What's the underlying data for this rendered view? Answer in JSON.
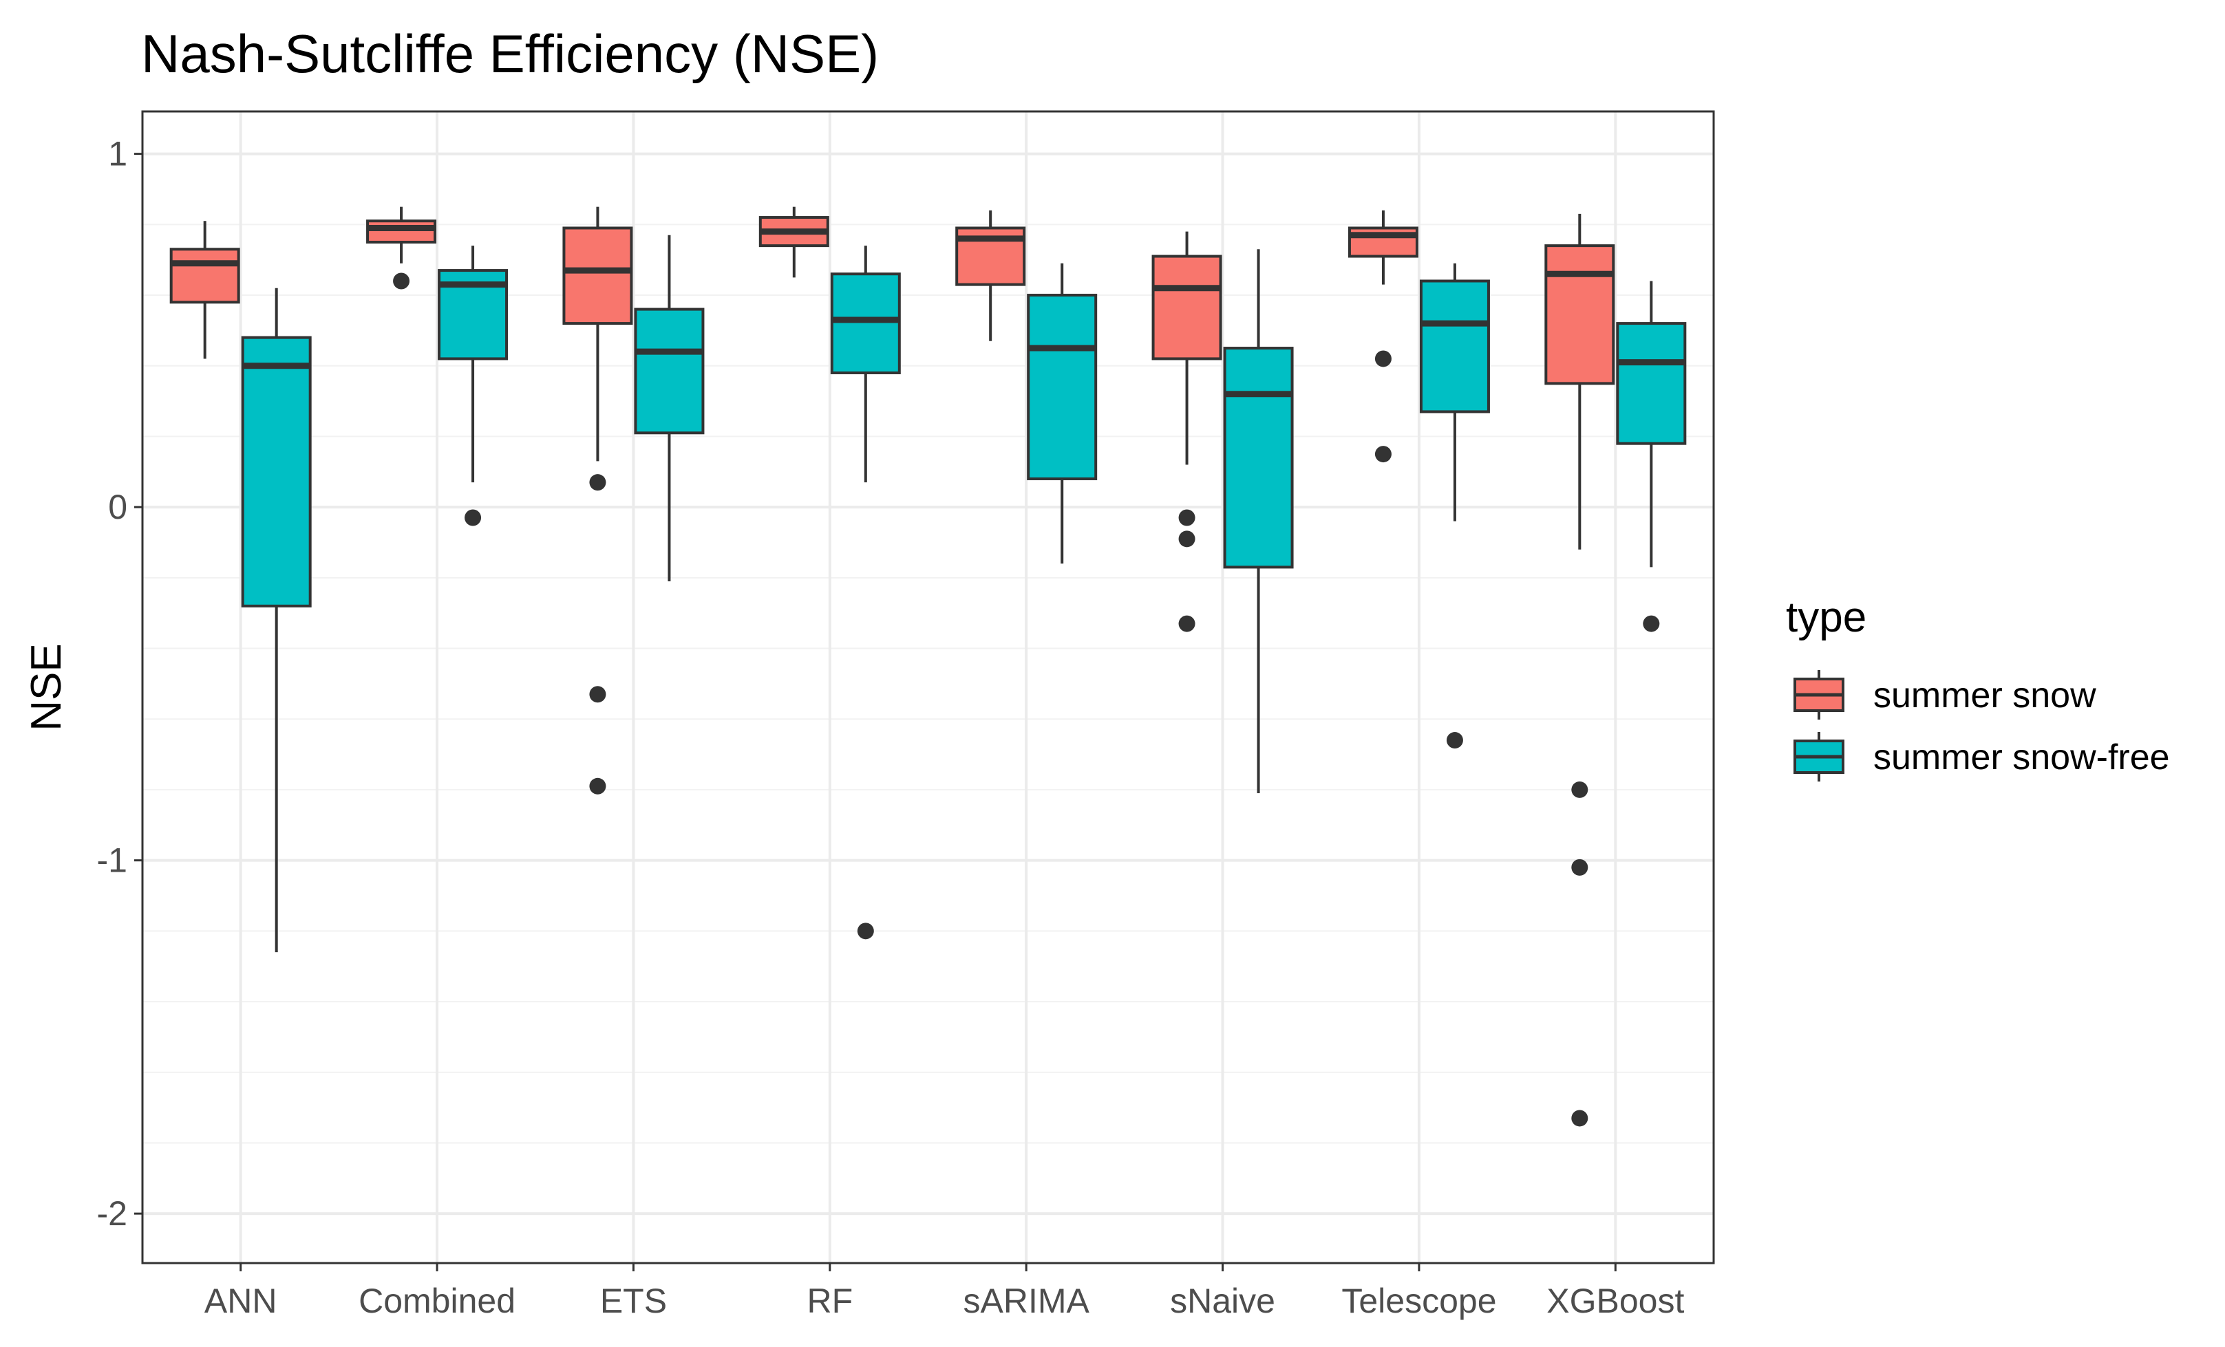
{
  "chart_data": {
    "type": "boxplot",
    "title": "Nash-Sutcliffe Efficiency (NSE)",
    "xlabel": "",
    "ylabel": "NSE",
    "ylim": [
      -2.14,
      1.12
    ],
    "yticks": [
      1,
      0,
      -1,
      -2
    ],
    "ytick_labels": [
      "1",
      "0",
      "-1",
      "-2"
    ],
    "grid": true,
    "categories": [
      "ANN",
      "Combined",
      "ETS",
      "RF",
      "sARIMA",
      "sNaive",
      "Telescope",
      "XGBoost"
    ],
    "legend": {
      "title": "type",
      "position": "right",
      "entries": [
        "summer snow",
        "summer snow-free"
      ]
    },
    "colors": {
      "summer snow": "#f8766d",
      "summer snow-free": "#00bfc4",
      "outline": "#333333",
      "grid_major": "#ebebeb",
      "grid_minor": "#f2f2f2",
      "panel_border": "#333333"
    },
    "series": [
      {
        "name": "summer snow",
        "boxes": [
          {
            "category": "ANN",
            "whisker_low": 0.42,
            "q1": 0.58,
            "median": 0.69,
            "q3": 0.73,
            "whisker_high": 0.81,
            "outliers": []
          },
          {
            "category": "Combined",
            "whisker_low": 0.69,
            "q1": 0.75,
            "median": 0.79,
            "q3": 0.81,
            "whisker_high": 0.85,
            "outliers": [
              0.64
            ]
          },
          {
            "category": "ETS",
            "whisker_low": 0.13,
            "q1": 0.52,
            "median": 0.67,
            "q3": 0.79,
            "whisker_high": 0.85,
            "outliers": [
              0.07,
              -0.53,
              -0.79
            ]
          },
          {
            "category": "RF",
            "whisker_low": 0.65,
            "q1": 0.74,
            "median": 0.78,
            "q3": 0.82,
            "whisker_high": 0.85,
            "outliers": []
          },
          {
            "category": "sARIMA",
            "whisker_low": 0.47,
            "q1": 0.63,
            "median": 0.76,
            "q3": 0.79,
            "whisker_high": 0.84,
            "outliers": []
          },
          {
            "category": "sNaive",
            "whisker_low": 0.12,
            "q1": 0.42,
            "median": 0.62,
            "q3": 0.71,
            "whisker_high": 0.78,
            "outliers": [
              -0.03,
              -0.09,
              -0.33
            ]
          },
          {
            "category": "Telescope",
            "whisker_low": 0.63,
            "q1": 0.71,
            "median": 0.77,
            "q3": 0.79,
            "whisker_high": 0.84,
            "outliers": [
              0.42,
              0.15
            ]
          },
          {
            "category": "XGBoost",
            "whisker_low": -0.12,
            "q1": 0.35,
            "median": 0.66,
            "q3": 0.74,
            "whisker_high": 0.83,
            "outliers": [
              -0.8,
              -1.02,
              -1.73
            ]
          }
        ]
      },
      {
        "name": "summer snow-free",
        "boxes": [
          {
            "category": "ANN",
            "whisker_low": -1.26,
            "q1": -0.28,
            "median": 0.4,
            "q3": 0.48,
            "whisker_high": 0.62,
            "outliers": []
          },
          {
            "category": "Combined",
            "whisker_low": 0.07,
            "q1": 0.42,
            "median": 0.63,
            "q3": 0.67,
            "whisker_high": 0.74,
            "outliers": [
              -0.03
            ]
          },
          {
            "category": "ETS",
            "whisker_low": -0.21,
            "q1": 0.21,
            "median": 0.44,
            "q3": 0.56,
            "whisker_high": 0.77,
            "outliers": []
          },
          {
            "category": "RF",
            "whisker_low": 0.07,
            "q1": 0.38,
            "median": 0.53,
            "q3": 0.66,
            "whisker_high": 0.74,
            "outliers": [
              -1.2
            ]
          },
          {
            "category": "sARIMA",
            "whisker_low": -0.16,
            "q1": 0.08,
            "median": 0.45,
            "q3": 0.6,
            "whisker_high": 0.69,
            "outliers": []
          },
          {
            "category": "sNaive",
            "whisker_low": -0.81,
            "q1": -0.17,
            "median": 0.32,
            "q3": 0.45,
            "whisker_high": 0.73,
            "outliers": []
          },
          {
            "category": "Telescope",
            "whisker_low": -0.04,
            "q1": 0.27,
            "median": 0.52,
            "q3": 0.64,
            "whisker_high": 0.69,
            "outliers": [
              -0.66
            ]
          },
          {
            "category": "XGBoost",
            "whisker_low": -0.17,
            "q1": 0.18,
            "median": 0.41,
            "q3": 0.52,
            "whisker_high": 0.64,
            "outliers": [
              -0.33
            ]
          }
        ]
      }
    ]
  }
}
